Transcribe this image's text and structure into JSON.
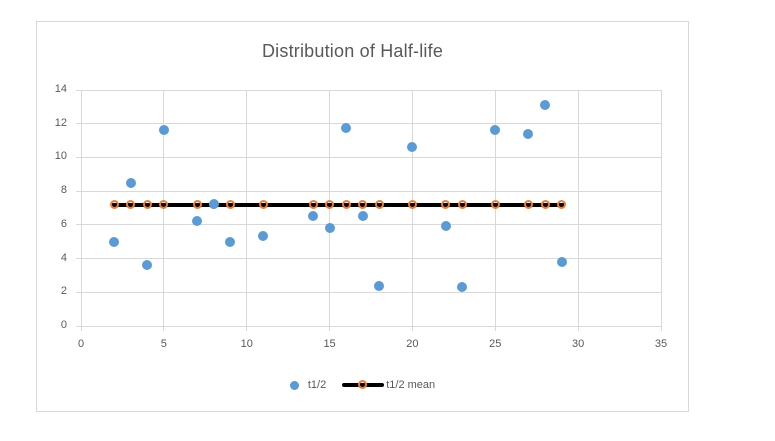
{
  "window": {
    "background": "#FFFFFF",
    "chart_border_color": "#D9D9D9"
  },
  "colors": {
    "series_blue": "#5B9BD5",
    "marker_orange": "#ED7D31",
    "mean_line": "#000000",
    "gridline": "#D9D9D9",
    "text_gray": "#595959",
    "background": "#FFFFFF"
  },
  "chart_data": {
    "type": "scatter",
    "title": "Distribution of Half-life",
    "x": [
      2,
      3,
      4,
      5,
      7,
      8,
      9,
      11,
      14,
      15,
      16,
      17,
      18,
      20,
      22,
      23,
      25,
      27,
      28,
      29
    ],
    "series": [
      {
        "name": "t1/2",
        "type": "scatter",
        "color": "#5B9BD5",
        "y": [
          5.0,
          8.5,
          3.6,
          11.65,
          6.2,
          7.25,
          5.0,
          5.35,
          6.5,
          5.8,
          11.75,
          6.55,
          2.4,
          10.6,
          5.95,
          2.3,
          11.65,
          11.4,
          13.1,
          3.8
        ]
      },
      {
        "name": "t1/2 mean",
        "type": "line",
        "line_color": "#000000",
        "marker_color": "#ED7D31",
        "y": [
          7.2,
          7.2,
          7.2,
          7.2,
          7.2,
          7.2,
          7.2,
          7.2,
          7.2,
          7.2,
          7.2,
          7.2,
          7.2,
          7.2,
          7.2,
          7.2,
          7.2,
          7.2,
          7.2,
          7.2
        ]
      }
    ],
    "xlim": [
      0,
      35
    ],
    "ylim": [
      0,
      14
    ],
    "x_ticks": [
      "0",
      "5",
      "10",
      "15",
      "20",
      "25",
      "30",
      "35"
    ],
    "y_ticks": [
      "0",
      "2",
      "4",
      "6",
      "8",
      "10",
      "12",
      "14"
    ],
    "grid": true,
    "legend_position": "bottom",
    "legend": [
      {
        "label": "t1/2",
        "swatch": "blue-dot"
      },
      {
        "label": "t1/2 mean",
        "swatch": "black-line-orange-ring"
      }
    ]
  }
}
